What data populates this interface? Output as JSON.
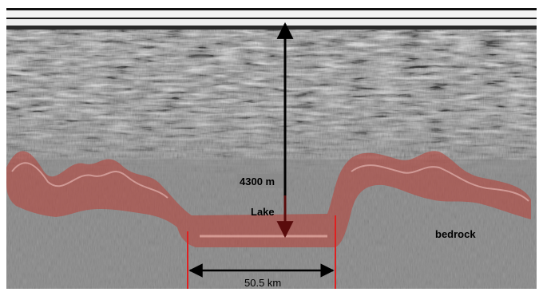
{
  "annotations": {
    "thickness_label": "4300 m",
    "lake_label": "Lake",
    "bedrock_label": "bedrock",
    "width_label": "50.5 km"
  },
  "colors": {
    "bed_highlight": "#b5473f",
    "marker_lines": "#e02020",
    "arrows": "#000000",
    "lake_arrow": "#5a0c0c"
  }
}
